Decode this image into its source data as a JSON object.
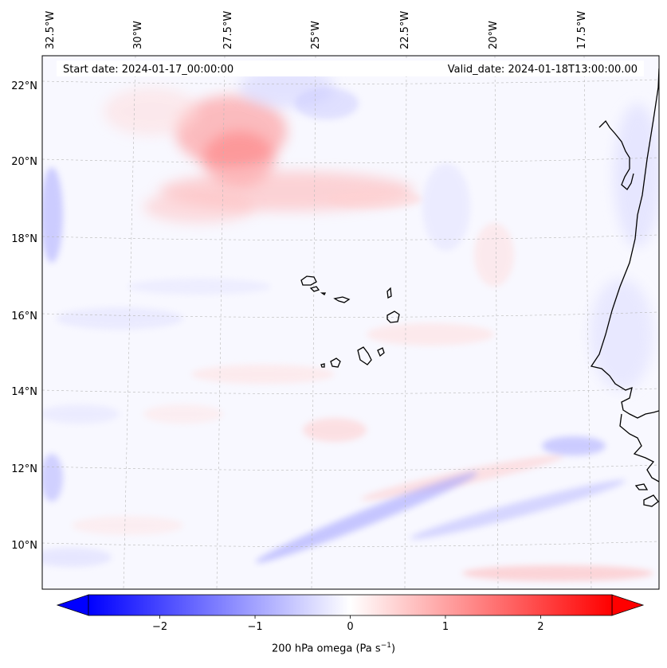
{
  "map": {
    "start_date": "Start date: 2024-01-17_00:00:00",
    "valid_date": "Valid_date: 2024-01-18T13:00:00.00",
    "longitude_labels": [
      "32.5°W",
      "30°W",
      "27.5°W",
      "25°W",
      "22.5°W",
      "20°W",
      "17.5°W"
    ],
    "latitude_labels": [
      "22°N",
      "20°N",
      "18°N",
      "16°N",
      "14°N",
      "12°N",
      "10°N"
    ],
    "extent": {
      "lon_min": -32.5,
      "lon_max": -15.4,
      "lat_min": 8.85,
      "lat_max": 22.75
    }
  },
  "colorbar": {
    "variable": "200 hPa omega",
    "units_base": "Pa s",
    "units_exponent": "−1",
    "range": [
      -2.75,
      2.75
    ],
    "ticks": [
      {
        "value": -2,
        "label": "−2"
      },
      {
        "value": -1,
        "label": "−1"
      },
      {
        "value": 0,
        "label": "0"
      },
      {
        "value": 1,
        "label": "1"
      },
      {
        "value": 2,
        "label": "2"
      }
    ],
    "colors": {
      "negative": "#0000ff",
      "zero": "#ffffff",
      "positive": "#ff0000"
    }
  }
}
